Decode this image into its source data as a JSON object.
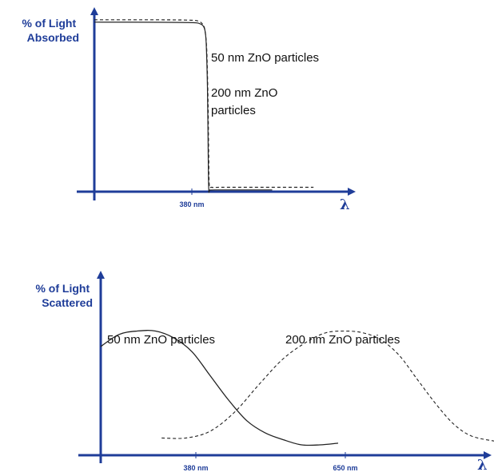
{
  "colors": {
    "axis": "#1f3d99",
    "curve_solid": "#222222",
    "curve_dashed": "#222222",
    "label_text": "#111111"
  },
  "chart_data": [
    {
      "type": "line",
      "ylabel": [
        "% of Light",
        "Absorbed"
      ],
      "xlabel": "λ",
      "x_ticks": [
        {
          "label": "380 nm",
          "value": 380
        }
      ],
      "xlim": [
        200,
        580
      ],
      "ylim": [
        0,
        100
      ],
      "grid": false,
      "labels": [
        {
          "text": "50 nm ZnO particles",
          "series": "50nm"
        },
        {
          "text": [
            "200 nm ZnO",
            "particles"
          ],
          "series": "200nm"
        }
      ],
      "series": [
        {
          "id": "50nm",
          "style": "solid",
          "x": [
            200,
            300,
            355,
            366,
            371,
            374,
            376,
            378,
            379,
            380,
            382,
            390,
            450,
            480
          ],
          "y": [
            96.5,
            96.4,
            96.2,
            95.6,
            94.5,
            92,
            85,
            60,
            30,
            2,
            1,
            1,
            1,
            1
          ]
        },
        {
          "id": "200nm",
          "style": "dashed",
          "x": [
            200,
            300,
            352,
            364,
            370,
            374,
            377,
            379,
            380,
            381,
            385,
            400,
            450,
            545
          ],
          "y": [
            97.8,
            97.8,
            97.6,
            97,
            95.5,
            92,
            80,
            50,
            20,
            4,
            2.5,
            2.5,
            2.5,
            2.5
          ]
        }
      ]
    },
    {
      "type": "line",
      "ylabel": [
        "% of Light",
        "Scattered"
      ],
      "xlabel": "λ",
      "x_ticks": [
        {
          "label": "380 nm",
          "value": 380
        },
        {
          "label": "650 nm",
          "value": 650
        }
      ],
      "xlim": [
        200,
        850
      ],
      "ylim": [
        0,
        100
      ],
      "grid": false,
      "labels": [
        {
          "text": "50 nm ZnO particles",
          "series": "50nm"
        },
        {
          "text": "200 nm ZnO particles",
          "series": "200nm"
        }
      ],
      "series": [
        {
          "id": "50nm",
          "style": "solid",
          "x": [
            200,
            230,
            260,
            290,
            320,
            350,
            380,
            410,
            440,
            470,
            500,
            530,
            560,
            590
          ],
          "y": [
            63,
            70,
            72,
            72,
            68,
            60,
            46,
            32,
            20,
            13,
            9,
            6,
            6,
            7
          ]
        },
        {
          "id": "200nm",
          "style": "dashed",
          "x": [
            300,
            340,
            380,
            420,
            460,
            500,
            540,
            570,
            600,
            630,
            660,
            690,
            720,
            750,
            780,
            810,
            850
          ],
          "y": [
            10,
            10,
            14,
            25,
            41,
            56,
            66,
            71,
            72,
            71,
            67,
            58,
            44,
            30,
            18,
            11,
            8
          ]
        }
      ]
    }
  ]
}
